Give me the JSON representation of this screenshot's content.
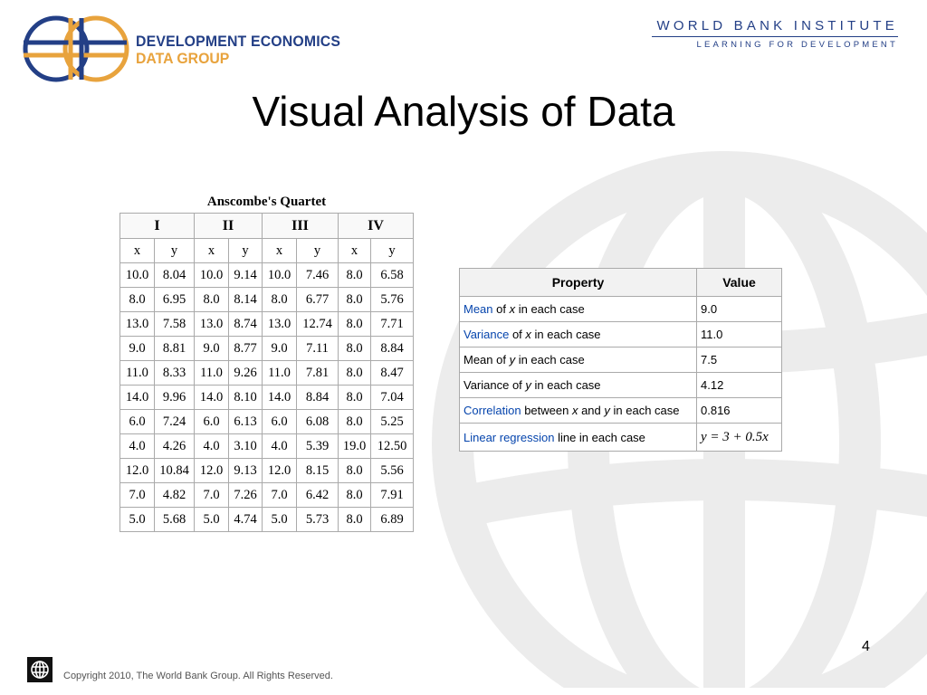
{
  "header": {
    "org_line1": "DEVELOPMENT ECONOMICS",
    "org_line2": "DATA GROUP",
    "institute_name": "WORLD BANK INSTITUTE",
    "institute_tagline": "LEARNING FOR DEVELOPMENT"
  },
  "slide": {
    "title": "Visual Analysis of Data",
    "page_number": "4"
  },
  "quartet_table": {
    "caption": "Anscombe's Quartet",
    "groups": [
      "I",
      "II",
      "III",
      "IV"
    ],
    "subheaders": [
      "x",
      "y",
      "x",
      "y",
      "x",
      "y",
      "x",
      "y"
    ],
    "rows": [
      [
        "10.0",
        "8.04",
        "10.0",
        "9.14",
        "10.0",
        "7.46",
        "8.0",
        "6.58"
      ],
      [
        "8.0",
        "6.95",
        "8.0",
        "8.14",
        "8.0",
        "6.77",
        "8.0",
        "5.76"
      ],
      [
        "13.0",
        "7.58",
        "13.0",
        "8.74",
        "13.0",
        "12.74",
        "8.0",
        "7.71"
      ],
      [
        "9.0",
        "8.81",
        "9.0",
        "8.77",
        "9.0",
        "7.11",
        "8.0",
        "8.84"
      ],
      [
        "11.0",
        "8.33",
        "11.0",
        "9.26",
        "11.0",
        "7.81",
        "8.0",
        "8.47"
      ],
      [
        "14.0",
        "9.96",
        "14.0",
        "8.10",
        "14.0",
        "8.84",
        "8.0",
        "7.04"
      ],
      [
        "6.0",
        "7.24",
        "6.0",
        "6.13",
        "6.0",
        "6.08",
        "8.0",
        "5.25"
      ],
      [
        "4.0",
        "4.26",
        "4.0",
        "3.10",
        "4.0",
        "5.39",
        "19.0",
        "12.50"
      ],
      [
        "12.0",
        "10.84",
        "12.0",
        "9.13",
        "12.0",
        "8.15",
        "8.0",
        "5.56"
      ],
      [
        "7.0",
        "4.82",
        "7.0",
        "7.26",
        "7.0",
        "6.42",
        "8.0",
        "7.91"
      ],
      [
        "5.0",
        "5.68",
        "5.0",
        "4.74",
        "5.0",
        "5.73",
        "8.0",
        "6.89"
      ]
    ]
  },
  "property_table": {
    "header_property": "Property",
    "header_value": "Value",
    "rows": [
      {
        "link": "Mean",
        "pre": "",
        "middle": " of ",
        "var1": "x",
        "mid2": "",
        "var2": "",
        "suffix": " in each case",
        "value": "9.0"
      },
      {
        "link": "Variance",
        "pre": "",
        "middle": " of ",
        "var1": "x",
        "mid2": "",
        "var2": "",
        "suffix": " in each case",
        "value": "11.0"
      },
      {
        "link": "",
        "pre": "Mean of ",
        "middle": "",
        "var1": "y",
        "mid2": "",
        "var2": "",
        "suffix": " in each case",
        "value": "7.5"
      },
      {
        "link": "",
        "pre": "Variance of ",
        "middle": "",
        "var1": "y",
        "mid2": "",
        "var2": "",
        "suffix": " in each case",
        "value": "4.12"
      },
      {
        "link": "Correlation",
        "pre": "",
        "middle": " between ",
        "var1": "x",
        "mid2": " and ",
        "var2": "y",
        "suffix": " in each case",
        "value": "0.816"
      },
      {
        "link": "Linear regression",
        "pre": "",
        "middle": " line in each case",
        "var1": "",
        "mid2": "",
        "var2": "",
        "suffix": "",
        "value": "y = 3 + 0.5x"
      }
    ]
  },
  "footer": {
    "copyright": "Copyright 2010, The World Bank Group. All Rights Reserved."
  },
  "colors": {
    "brand_blue": "#233f86",
    "brand_orange": "#e8a33d",
    "link_blue": "#0645ad",
    "watermark_gray": "#ececec"
  }
}
